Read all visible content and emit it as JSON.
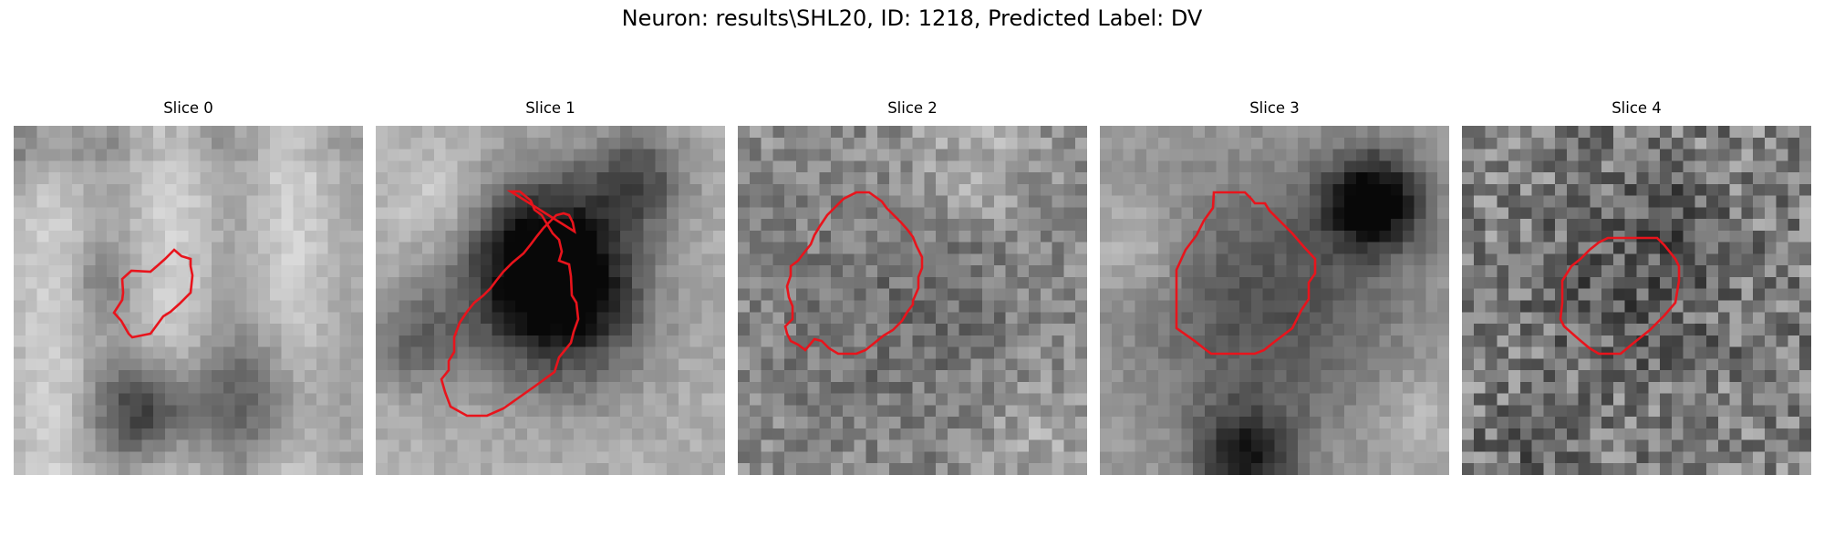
{
  "figure": {
    "title": "Neuron: results\\SHL20, ID: 1218, Predicted Label: DV"
  },
  "panels": [
    {
      "title": "Slice 0"
    },
    {
      "title": "Slice 1"
    },
    {
      "title": "Slice 2"
    },
    {
      "title": "Slice 3"
    },
    {
      "title": "Slice 4"
    }
  ],
  "colors": {
    "contour": "#e8141c",
    "colormap": "gray",
    "background": "#ffffff"
  }
}
